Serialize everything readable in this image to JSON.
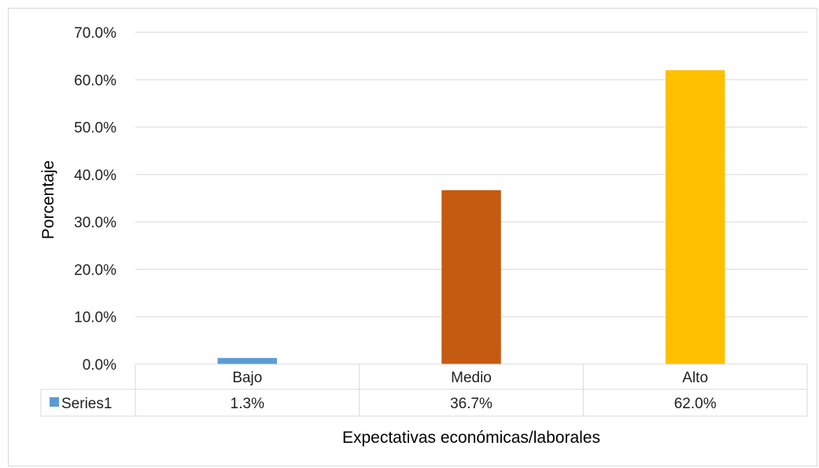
{
  "chart_data": {
    "type": "bar",
    "categories": [
      "Bajo",
      "Medio",
      "Alto"
    ],
    "series": [
      {
        "name": "Series1",
        "values": [
          1.3,
          36.7,
          62.0
        ],
        "value_labels": [
          "1.3%",
          "36.7%",
          "62.0%"
        ]
      }
    ],
    "bar_colors": [
      "#5b9bd5",
      "#c55a11",
      "#ffc000"
    ],
    "legend_color": "#5b9bd5",
    "xlabel": "Expectativas económicas/laborales",
    "ylabel": "Porcentaje",
    "ylim": [
      0,
      70
    ],
    "yticks": [
      "0.0%",
      "10.0%",
      "20.0%",
      "30.0%",
      "40.0%",
      "50.0%",
      "60.0%",
      "70.0%"
    ],
    "grid": true,
    "legend_placement": "data-table"
  }
}
